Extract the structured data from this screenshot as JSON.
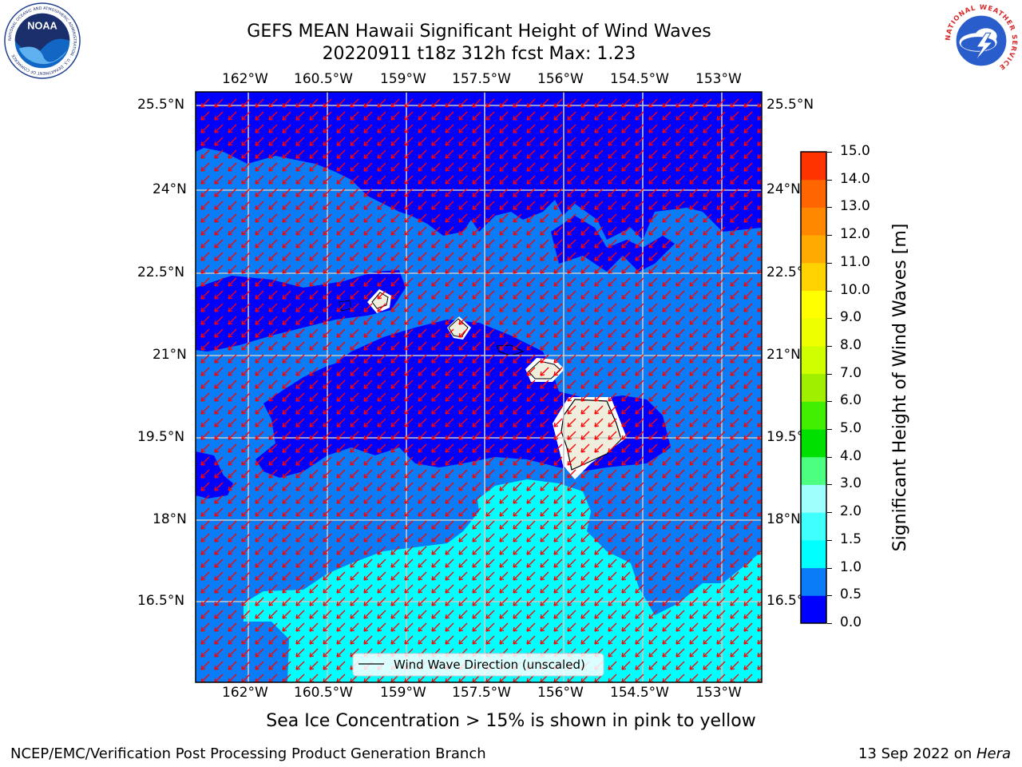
{
  "header": {
    "title_line1": "GEFS MEAN Hawaii Significant Height of Wind Waves",
    "title_line2": "20220911 t18z 312h fcst   Max: 1.23"
  },
  "logos": {
    "left": {
      "icon": "noaa-logo-icon",
      "text": "NOAA",
      "ring_text": "NATIONAL OCEANIC AND ATMOSPHERIC ADMINISTRATION · U.S. DEPARTMENT OF COMMERCE"
    },
    "right": {
      "icon": "national-weather-service-logo-icon",
      "ring_text": "NATIONAL WEATHER SERVICE"
    }
  },
  "map": {
    "lon_labels": [
      "162°W",
      "160.5°W",
      "159°W",
      "157.5°W",
      "156°W",
      "154.5°W",
      "153°W"
    ],
    "lat_labels": [
      "25.5°N",
      "24°N",
      "22.5°N",
      "21°N",
      "19.5°N",
      "18°N",
      "16.5°N"
    ],
    "legend_label": "Wind Wave Direction (unscaled)",
    "colors": {
      "band_0_0_5": "#0000ff",
      "band_0_5_1_0": "#0a7cf7",
      "band_1_0_1_5": "#00ffff",
      "land": "#efeedd",
      "arrows": "#ff0000",
      "grid": "#bdbdbd"
    }
  },
  "colorbar": {
    "label": "Significant Height of Wind Waves [m]",
    "ticks": [
      "0.0",
      "0.5",
      "1.0",
      "1.5",
      "2.0",
      "3.0",
      "4.0",
      "5.0",
      "6.0",
      "7.0",
      "8.0",
      "9.0",
      "10.0",
      "11.0",
      "12.0",
      "13.0",
      "14.0",
      "15.0"
    ],
    "colors": [
      "#0000ff",
      "#0a7cf7",
      "#00ffff",
      "#40ffff",
      "#9ffffc",
      "#4dff80",
      "#00e000",
      "#40ee00",
      "#a0ee00",
      "#d0ff00",
      "#eeff00",
      "#ffff00",
      "#ffd300",
      "#ffaa00",
      "#ff8800",
      "#ff6600",
      "#ff3300",
      "#ff0000"
    ]
  },
  "note": "Sea Ice Concentration > 15% is shown in pink to yellow",
  "footer": {
    "left": "NCEP/EMC/Verification Post Processing Product Generation Branch",
    "date": "13 Sep 2022 on ",
    "machine": "Hera"
  }
}
